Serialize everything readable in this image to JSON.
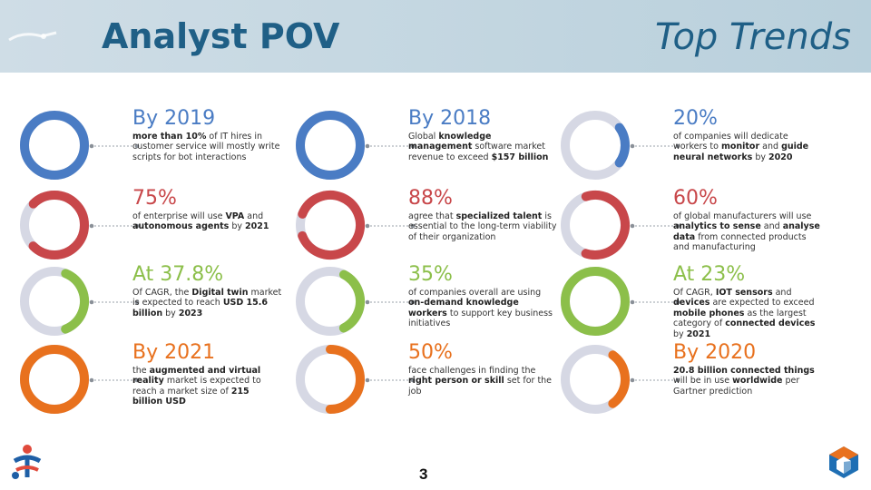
{
  "header": {
    "title": "Analyst POV",
    "subtitle": "Top Trends"
  },
  "page_number": "3",
  "colors": {
    "blue": "#4a7cc4",
    "red": "#c8474a",
    "green": "#8cbf4a",
    "orange": "#e8711e",
    "track": "#d6d8e4"
  },
  "cells": [
    {
      "stat": "By 2019",
      "color": "#4a7cc4",
      "fill": 1.0,
      "desc": [
        [
          "more than 10%",
          true
        ],
        [
          " of IT hires in customer service will mostly write scripts for bot interactions",
          false
        ]
      ]
    },
    {
      "stat": "By 2018",
      "color": "#4a7cc4",
      "fill": 1.0,
      "desc": [
        [
          "Global ",
          false
        ],
        [
          "knowledge management",
          true
        ],
        [
          " software market revenue to exceed ",
          false
        ],
        [
          "$157 billion",
          true
        ]
      ]
    },
    {
      "stat": "20%",
      "color": "#4a7cc4",
      "fill": 0.2,
      "desc": [
        [
          "of companies will dedicate workers to ",
          false
        ],
        [
          "monitor",
          true
        ],
        [
          " and ",
          false
        ],
        [
          "guide neural networks",
          true
        ],
        [
          " by ",
          false
        ],
        [
          "2020",
          true
        ]
      ]
    },
    {
      "stat": "75%",
      "color": "#c8474a",
      "fill": 0.75,
      "desc": [
        [
          "of enterprise will use ",
          false
        ],
        [
          "VPA",
          true
        ],
        [
          " and ",
          false
        ],
        [
          "autonomous agents",
          true
        ],
        [
          " by ",
          false
        ],
        [
          "2021",
          true
        ]
      ]
    },
    {
      "stat": "88%",
      "color": "#c8474a",
      "fill": 0.88,
      "desc": [
        [
          "agree that ",
          false
        ],
        [
          "specialized talent",
          true
        ],
        [
          " is essential to the long-term viability of their organization",
          false
        ]
      ]
    },
    {
      "stat": "60%",
      "color": "#c8474a",
      "fill": 0.6,
      "desc": [
        [
          "of global manufacturers will use ",
          false
        ],
        [
          "analytics to sense",
          true
        ],
        [
          " and ",
          false
        ],
        [
          "analyse data",
          true
        ],
        [
          " from connected products and manufacturing",
          false
        ]
      ]
    },
    {
      "stat": "At 37.8%",
      "color": "#8cbf4a",
      "fill": 0.378,
      "desc": [
        [
          "Of CAGR, the ",
          false
        ],
        [
          "Digital twin",
          true
        ],
        [
          " market is expected to reach ",
          false
        ],
        [
          "USD 15.6 billion",
          true
        ],
        [
          " by ",
          false
        ],
        [
          "2023",
          true
        ]
      ]
    },
    {
      "stat": "35%",
      "color": "#8cbf4a",
      "fill": 0.35,
      "desc": [
        [
          "of companies overall are using ",
          false
        ],
        [
          "on-demand knowledge workers",
          true
        ],
        [
          " to support key business initiatives",
          false
        ]
      ]
    },
    {
      "stat": "At 23%",
      "color": "#8cbf4a",
      "fill": 1.0,
      "desc": [
        [
          "Of CAGR, ",
          false
        ],
        [
          "IOT sensors",
          true
        ],
        [
          " and ",
          false
        ],
        [
          "devices",
          true
        ],
        [
          " are expected to exceed ",
          false
        ],
        [
          "mobile phones",
          true
        ],
        [
          " as the largest category of ",
          false
        ],
        [
          "connected devices",
          true
        ],
        [
          " by ",
          false
        ],
        [
          "2021",
          true
        ]
      ]
    },
    {
      "stat": "By 2021",
      "color": "#e8711e",
      "fill": 1.0,
      "desc": [
        [
          "the ",
          false
        ],
        [
          "augmented and virtual reality",
          true
        ],
        [
          " market is expected to reach a market size of ",
          false
        ],
        [
          "215 billion USD",
          true
        ]
      ]
    },
    {
      "stat": "50%",
      "color": "#e8711e",
      "fill": 0.5,
      "desc": [
        [
          "face challenges in finding the ",
          false
        ],
        [
          "right person or skill",
          true
        ],
        [
          " set for the job",
          false
        ]
      ]
    },
    {
      "stat": "By 2020",
      "color": "#e8711e",
      "fill": 0.3,
      "desc": [
        [
          "20.8 billion connected things",
          true
        ],
        [
          " will be in use ",
          false
        ],
        [
          "worldwide",
          true
        ],
        [
          " per Gartner prediction",
          false
        ]
      ]
    }
  ]
}
